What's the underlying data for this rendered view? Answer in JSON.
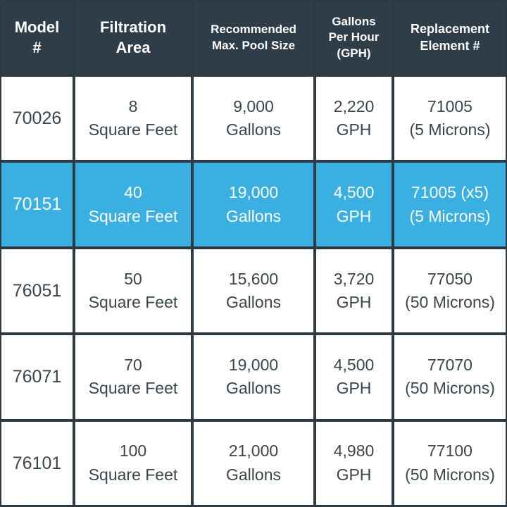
{
  "colors": {
    "header_bg": "#2f3d48",
    "highlight": "#3ab0e2",
    "cell_bg": "#ffffff",
    "text": "#3a454d"
  },
  "headers": [
    {
      "lines": [
        "Model",
        "#"
      ]
    },
    {
      "lines": [
        "Filtration",
        "Area"
      ]
    },
    {
      "lines": [
        "Recommended",
        "Max. Pool Size"
      ]
    },
    {
      "lines": [
        "Gallons",
        "Per Hour",
        "(GPH)"
      ]
    },
    {
      "lines": [
        "Replacement",
        "Element #"
      ]
    }
  ],
  "rows": [
    {
      "model": "70026",
      "area": [
        "8",
        "Square Feet"
      ],
      "pool": [
        "9,000",
        "Gallons"
      ],
      "gph": [
        "2,220",
        "GPH"
      ],
      "element": [
        "71005",
        "(5 Microns)"
      ],
      "highlighted": false
    },
    {
      "model": "70151",
      "area": [
        "40",
        "Square Feet"
      ],
      "pool": [
        "19,000",
        "Gallons"
      ],
      "gph": [
        "4,500",
        "GPH"
      ],
      "element": [
        "71005 (x5)",
        "(5 Microns)"
      ],
      "highlighted": true
    },
    {
      "model": "76051",
      "area": [
        "50",
        "Square Feet"
      ],
      "pool": [
        "15,600",
        "Gallons"
      ],
      "gph": [
        "3,720",
        "GPH"
      ],
      "element": [
        "77050",
        "(50 Microns)"
      ],
      "highlighted": false
    },
    {
      "model": "76071",
      "area": [
        "70",
        "Square Feet"
      ],
      "pool": [
        "19,000",
        "Gallons"
      ],
      "gph": [
        "4,500",
        "GPH"
      ],
      "element": [
        "77070",
        "(50 Microns)"
      ],
      "highlighted": false
    },
    {
      "model": "76101",
      "area": [
        "100",
        "Square Feet"
      ],
      "pool": [
        "21,000",
        "Gallons"
      ],
      "gph": [
        "4,980",
        "GPH"
      ],
      "element": [
        "77100",
        "(50 Microns)"
      ],
      "highlighted": false
    }
  ]
}
